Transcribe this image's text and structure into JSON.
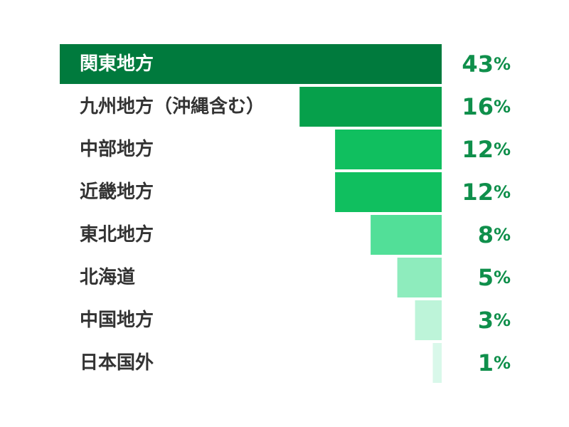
{
  "chart_data": {
    "type": "bar",
    "orientation": "horizontal",
    "align": "right",
    "title": "",
    "xlabel": "",
    "ylabel": "",
    "unit": "%",
    "categories": [
      "関東地方",
      "九州地方（沖縄含む）",
      "中部地方",
      "近畿地方",
      "東北地方",
      "北海道",
      "中国地方",
      "日本国外"
    ],
    "values": [
      43,
      16,
      12,
      12,
      8,
      5,
      3,
      1
    ],
    "value_labels": [
      "43",
      "16",
      "12",
      "12",
      "8",
      "5",
      "3",
      "1"
    ],
    "xlim": [
      0,
      43
    ],
    "grid": false,
    "legend": "none",
    "colors": {
      "bars": [
        "#007a3d",
        "#06a04b",
        "#10bf5f",
        "#10bf5f",
        "#52df98",
        "#8eecbd",
        "#bdf4d9",
        "#d9f8ea"
      ],
      "value_text": "#0f8f4b",
      "label_on_dark": "#ffffff",
      "label_default": "#333333"
    }
  }
}
